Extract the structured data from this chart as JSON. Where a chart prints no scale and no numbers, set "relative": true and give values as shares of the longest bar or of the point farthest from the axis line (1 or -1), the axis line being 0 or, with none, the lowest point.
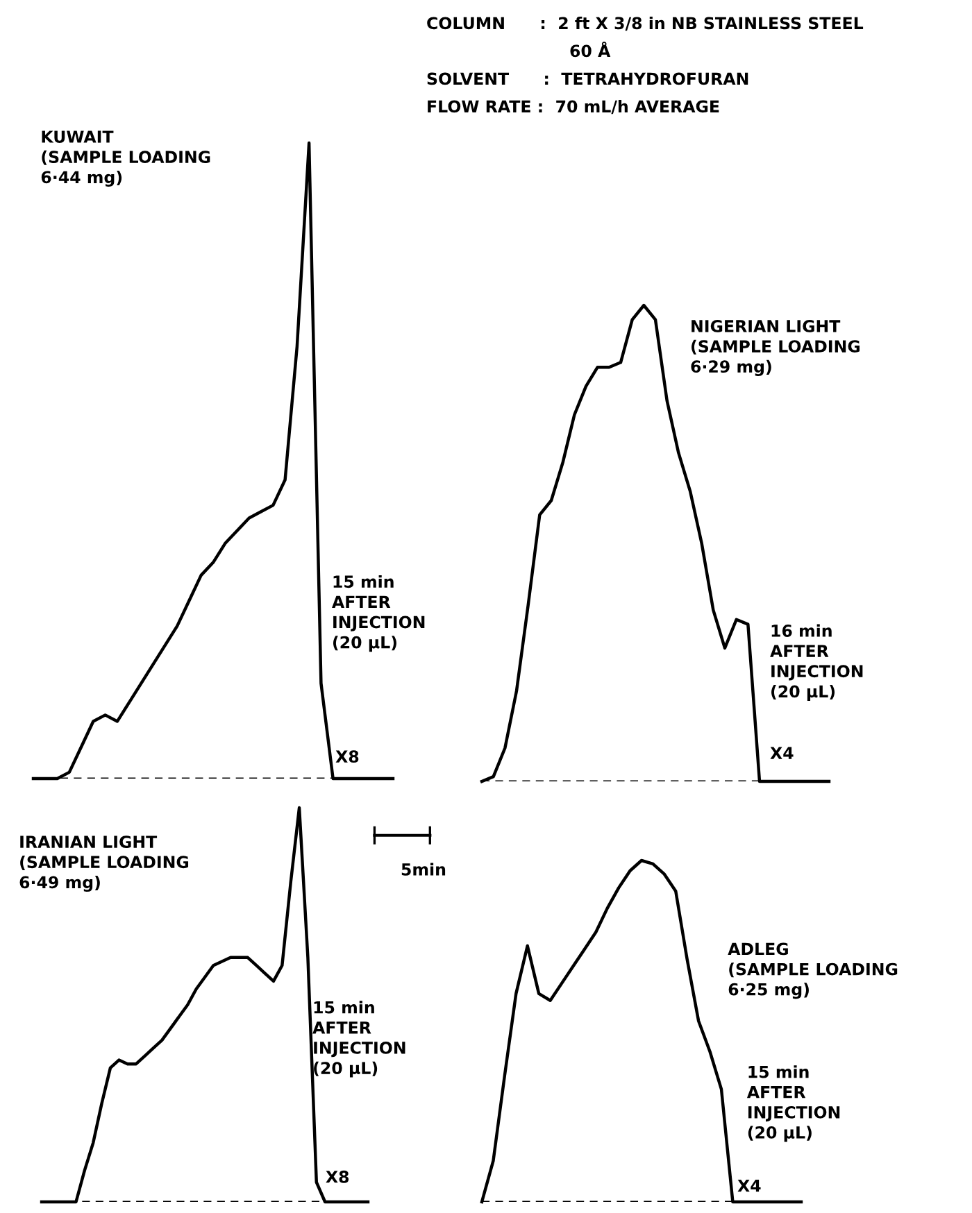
{
  "chart_data": [
    {
      "type": "line",
      "relative": true,
      "title": "KUWAIT\n(SAMPLE LOADING\n6·44 mg)",
      "categories": [
        null,
        null,
        null,
        null,
        null,
        null,
        null,
        null,
        null,
        null,
        null,
        null,
        null,
        null,
        null,
        null,
        null,
        null,
        null,
        null,
        null,
        null,
        null,
        null,
        null,
        null,
        null,
        null,
        null,
        null,
        null
      ],
      "series": [
        {
          "color": "#000000",
          "values": [
            0,
            0,
            0,
            0.01,
            0.05,
            0.09,
            0.1,
            0.09,
            0.12,
            0.15,
            0.18,
            0.21,
            0.24,
            0.28,
            0.32,
            0.34,
            0.37,
            0.39,
            0.41,
            0.42,
            0.43,
            0.47,
            0.68,
            1.0,
            0.15,
            0,
            0,
            0,
            0,
            0,
            0
          ]
        }
      ],
      "ref_lines": [
        {
          "axis": "y",
          "value": 0,
          "line_style": "dashed",
          "color": "#000000"
        }
      ],
      "annotations": [
        "15 min\nAFTER\nINJECTION\n(20 µL)",
        "X8",
        "COLUMN      :  2 ft X 3/8 in NB STAINLESS STEEL",
        "60 Å",
        "SOLVENT      :  TETRAHYDROFURAN",
        "FLOW RATE :  70 mL/h AVERAGE"
      ]
    },
    {
      "type": "line",
      "relative": true,
      "title": "NIGERIAN LIGHT\n(SAMPLE LOADING\n6·29 mg)",
      "categories": [
        null,
        null,
        null,
        null,
        null,
        null,
        null,
        null,
        null,
        null,
        null,
        null,
        null,
        null,
        null,
        null,
        null,
        null,
        null,
        null,
        null,
        null,
        null,
        null,
        null,
        null,
        null,
        null,
        null,
        null,
        null
      ],
      "series": [
        {
          "color": "#000000",
          "values": [
            0,
            0.01,
            0.07,
            0.19,
            0.37,
            0.56,
            0.59,
            0.67,
            0.77,
            0.83,
            0.87,
            0.87,
            0.88,
            0.97,
            1.0,
            0.97,
            0.8,
            0.69,
            0.61,
            0.5,
            0.36,
            0.28,
            0.34,
            0.33,
            0,
            0,
            0,
            0,
            0,
            0,
            0
          ]
        }
      ],
      "ref_lines": [
        {
          "axis": "y",
          "value": 0,
          "line_style": "dashed",
          "color": "#000000"
        }
      ],
      "annotations": [
        "16 min\nAFTER\nINJECTION\n(20 µL)",
        "X4"
      ]
    },
    {
      "type": "line",
      "relative": true,
      "title": "IRANIAN LIGHT\n(SAMPLE LOADING\n6·49 mg)",
      "categories": [
        null,
        null,
        null,
        null,
        null,
        null,
        null,
        null,
        null,
        null,
        null,
        null,
        null,
        null,
        null,
        null,
        null,
        null,
        null,
        null,
        null,
        null,
        null,
        null,
        null,
        null,
        null,
        null,
        null,
        null,
        null,
        null,
        null,
        null,
        null,
        null,
        null,
        null,
        null
      ],
      "series": [
        {
          "color": "#000000",
          "values": [
            0,
            0,
            0,
            0,
            0,
            0.08,
            0.15,
            0.25,
            0.34,
            0.36,
            0.35,
            0.35,
            0.37,
            0.39,
            0.41,
            0.44,
            0.47,
            0.5,
            0.54,
            0.57,
            0.6,
            0.61,
            0.62,
            0.62,
            0.62,
            0.6,
            0.58,
            0.56,
            0.6,
            0.81,
            1.0,
            0.62,
            0.05,
            0,
            0,
            0,
            0,
            0,
            0
          ]
        }
      ],
      "ref_lines": [
        {
          "axis": "y",
          "value": 0,
          "line_style": "dashed",
          "color": "#000000"
        }
      ],
      "annotations": [
        "15 min\nAFTER\nINJECTION\n(20 µL)",
        "X8",
        "5min"
      ]
    },
    {
      "type": "line",
      "relative": true,
      "title": "ADLEG\n(SAMPLE LOADING\n6·25 mg)",
      "categories": [
        null,
        null,
        null,
        null,
        null,
        null,
        null,
        null,
        null,
        null,
        null,
        null,
        null,
        null,
        null,
        null,
        null,
        null,
        null,
        null,
        null,
        null,
        null,
        null,
        null,
        null,
        null,
        null,
        null
      ],
      "series": [
        {
          "color": "#000000",
          "values": [
            0,
            0.12,
            0.37,
            0.61,
            0.75,
            0.61,
            0.59,
            0.64,
            0.69,
            0.74,
            0.79,
            0.86,
            0.92,
            0.97,
            1.0,
            0.99,
            0.96,
            0.91,
            0.71,
            0.53,
            0.44,
            0.33,
            0,
            0,
            0,
            0,
            0,
            0,
            0
          ]
        }
      ],
      "ref_lines": [
        {
          "axis": "y",
          "value": 0,
          "line_style": "dashed",
          "color": "#000000"
        }
      ],
      "annotations": [
        "15 min\nAFTER\nINJECTION\n(20 µL)",
        "X4"
      ]
    }
  ]
}
